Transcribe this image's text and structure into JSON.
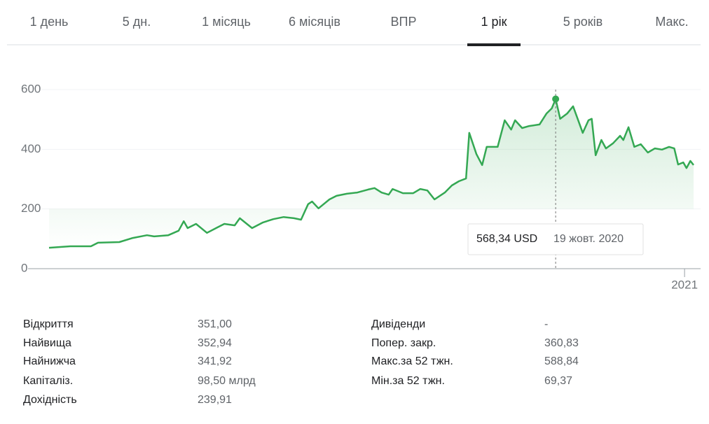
{
  "tabs": [
    "1 день",
    "5 дн.",
    "1 місяць",
    "6 місяців",
    "ВПР",
    "1 рік",
    "5 років",
    "Макс."
  ],
  "active_tab": 5,
  "chart_data": {
    "type": "line",
    "series": [
      {
        "color": "#34a853",
        "x": [
          2020.014,
          2020.047,
          2020.079,
          2020.09,
          2020.123,
          2020.144,
          2020.166,
          2020.177,
          2020.199,
          2020.215,
          2020.223,
          2020.229,
          2020.242,
          2020.259,
          2020.275,
          2020.286,
          2020.302,
          2020.31,
          2020.318,
          2020.329,
          2020.346,
          2020.362,
          2020.378,
          2020.394,
          2020.405,
          2020.416,
          2020.422,
          2020.432,
          2020.449,
          2020.46,
          2020.476,
          2020.492,
          2020.509,
          2020.519,
          2020.53,
          2020.541,
          2020.547,
          2020.563,
          2020.579,
          2020.59,
          2020.601,
          2020.612,
          2020.628,
          2020.639,
          2020.65,
          2020.661,
          2020.666,
          2020.677,
          2020.686,
          2020.693,
          2020.71,
          2020.721,
          2020.731,
          2020.737,
          2020.748,
          2020.759,
          2020.775,
          2020.786,
          2020.794,
          2020.8,
          2020.807,
          2020.818,
          2020.827,
          2020.835,
          2020.842,
          2020.851,
          2020.856,
          2020.862,
          2020.871,
          2020.878,
          2020.889,
          2020.9,
          2020.905,
          2020.913,
          2020.922,
          2020.932,
          2020.943,
          2020.954,
          2020.965,
          2020.976,
          2020.984,
          2020.99,
          2020.998,
          2021.003,
          2021.009,
          2021.014
        ],
        "values": [
          70,
          75,
          75,
          87,
          89,
          103,
          112,
          108,
          112,
          127,
          159,
          136,
          150,
          120,
          138,
          150,
          145,
          169,
          155,
          136,
          155,
          166,
          173,
          169,
          164,
          216,
          225,
          202,
          232,
          244,
          251,
          255,
          265,
          270,
          255,
          248,
          267,
          253,
          253,
          267,
          262,
          232,
          255,
          279,
          293,
          302,
          455,
          384,
          347,
          408,
          408,
          497,
          466,
          497,
          471,
          478,
          483,
          520,
          537,
          568.34,
          502,
          520,
          544,
          497,
          455,
          497,
          502,
          380,
          431,
          403,
          420,
          445,
          431,
          474,
          408,
          417,
          389,
          403,
          399,
          408,
          403,
          349,
          356,
          337,
          361,
          347
        ]
      }
    ],
    "xlim": [
      2020.014,
      2021.014
    ],
    "xticks": [
      2021
    ],
    "ylim": [
      0,
      600
    ],
    "yticks": [
      0,
      200,
      400,
      600
    ],
    "grid": true,
    "tooltip": {
      "x": 2020.8,
      "value": 568.34,
      "label": "568,34 USD",
      "date": "19 жовт. 2020"
    }
  },
  "stats": {
    "left": [
      [
        "Відкриття",
        "351,00"
      ],
      [
        "Найвища",
        "352,94"
      ],
      [
        "Найнижча",
        "341,92"
      ],
      [
        "Капіталіз.",
        "98,50 млрд"
      ],
      [
        "Дохідність",
        "239,91"
      ]
    ],
    "right": [
      [
        "Дивіденди",
        "-"
      ],
      [
        "Попер. закр.",
        "360,83"
      ],
      [
        "Макс.за 52 тжн.",
        "588,84"
      ],
      [
        "Мін.за 52 тжн.",
        "69,37"
      ]
    ]
  }
}
